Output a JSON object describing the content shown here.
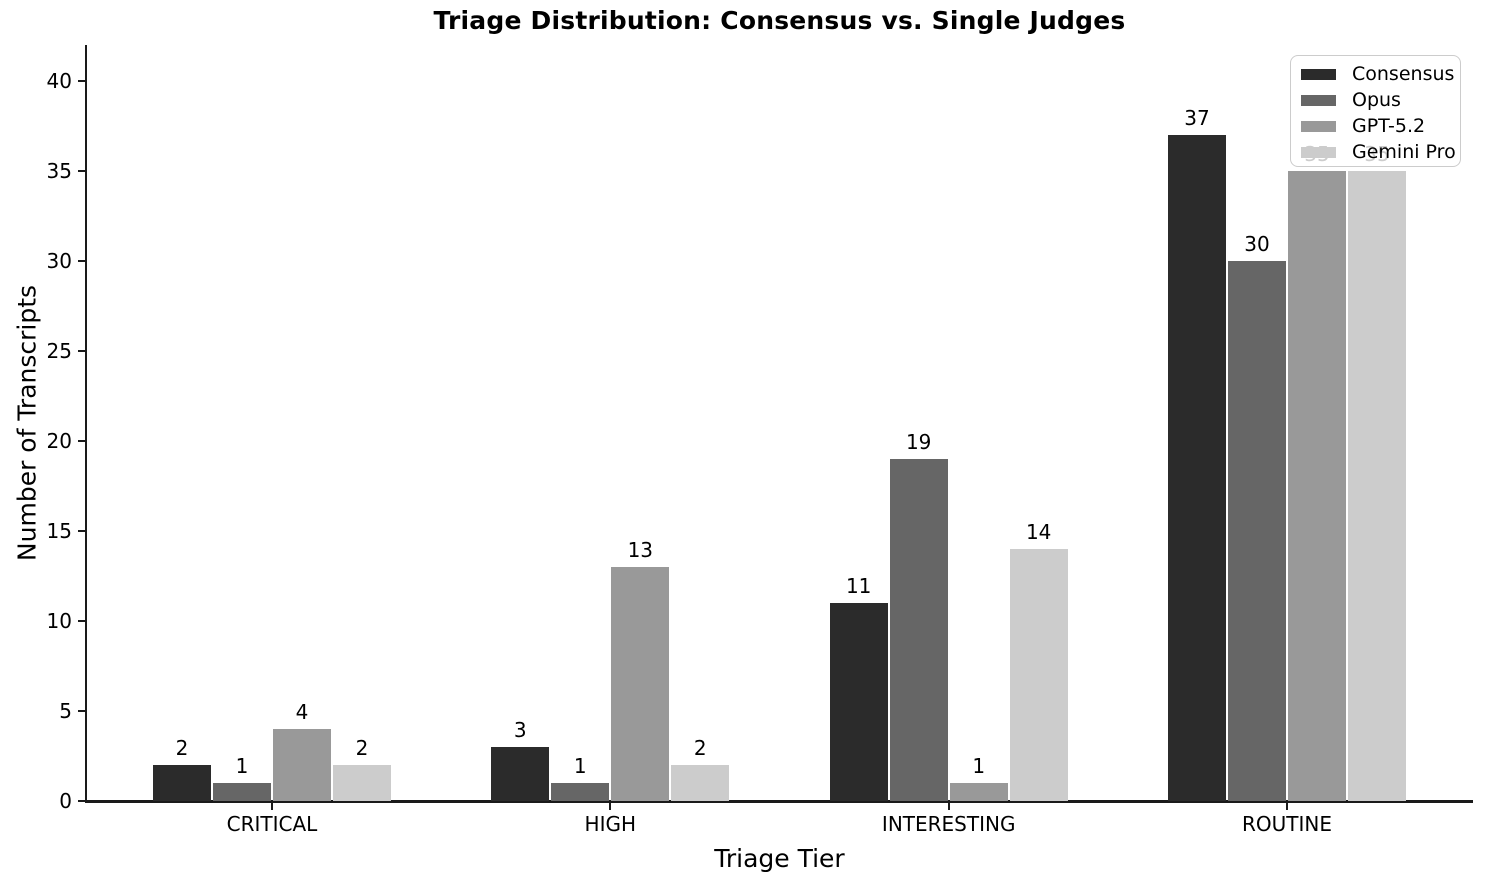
{
  "chart_data": {
    "type": "bar",
    "title": "Triage Distribution: Consensus vs. Single Judges",
    "xlabel": "Triage Tier",
    "ylabel": "Number of Transcripts",
    "categories": [
      "CRITICAL",
      "HIGH",
      "INTERESTING",
      "ROUTINE"
    ],
    "series": [
      {
        "name": "Consensus",
        "color": "#2b2b2b",
        "values": [
          2,
          3,
          11,
          37
        ]
      },
      {
        "name": "Opus",
        "color": "#666666",
        "values": [
          1,
          1,
          19,
          30
        ]
      },
      {
        "name": "GPT-5.2",
        "color": "#999999",
        "values": [
          4,
          13,
          1,
          35
        ]
      },
      {
        "name": "Gemini Pro",
        "color": "#cccccc",
        "values": [
          2,
          2,
          14,
          35
        ]
      }
    ],
    "yticks": [
      0,
      5,
      10,
      15,
      20,
      25,
      30,
      35,
      40
    ],
    "ylim": [
      0,
      42
    ],
    "bar_labels": true,
    "legend_position": "upper right",
    "grid": false,
    "axis_color": "#1a1a1a",
    "legend_border_color": "#cccccc",
    "background_color": "#ffffff"
  }
}
